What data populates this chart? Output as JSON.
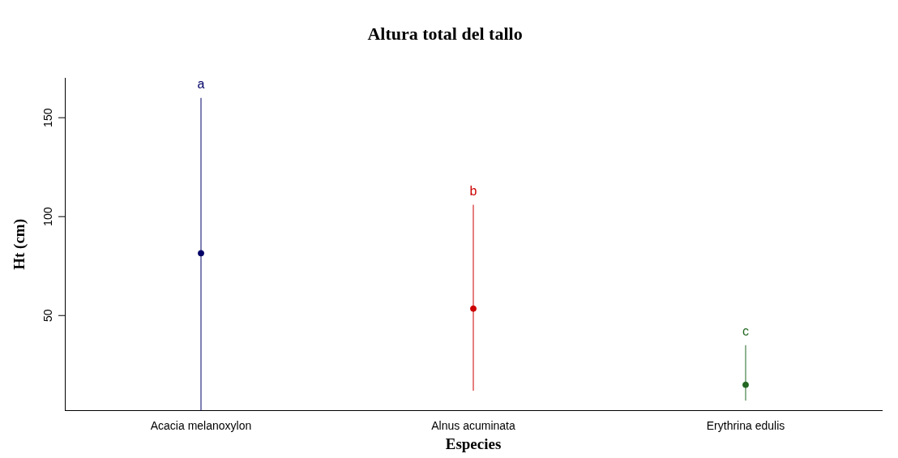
{
  "chart_data": {
    "type": "scatter",
    "title": "Altura total del tallo",
    "xlabel": "Especies",
    "ylabel": "Ht (cm)",
    "categories": [
      "Acacia melanoxylon",
      "Alnus acuminata",
      "Erythrina edulis"
    ],
    "values": [
      81.5,
      53.5,
      15
    ],
    "colors": [
      "#000066",
      "#cc0000",
      "#226622"
    ],
    "errors": [
      [
        2,
        160
      ],
      [
        12,
        106
      ],
      [
        7,
        35
      ]
    ],
    "ylim": [
      2,
      170
    ],
    "yticks": [
      50,
      100,
      150
    ],
    "grid": false,
    "legend": false,
    "marker": "circle",
    "annotations": [
      "a",
      "b",
      "c"
    ]
  }
}
